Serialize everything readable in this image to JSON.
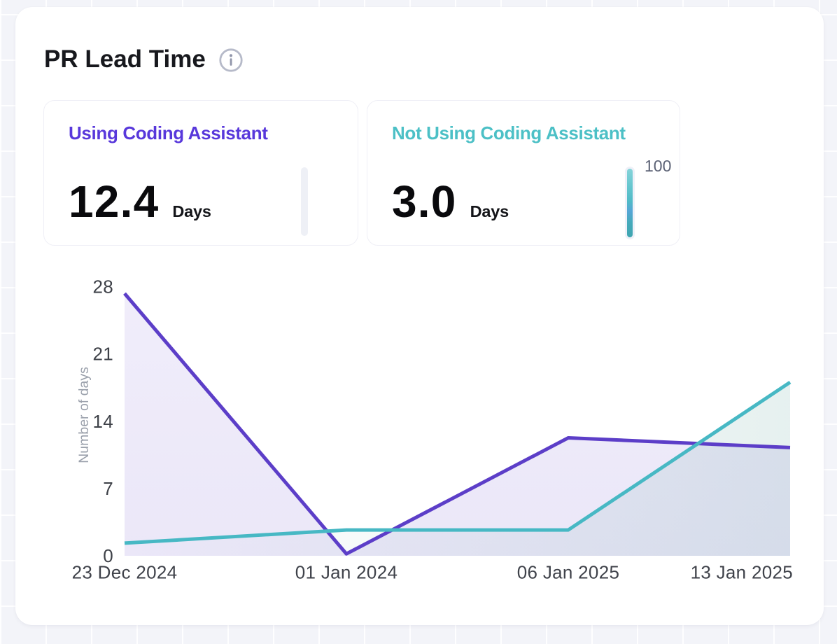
{
  "page": {
    "background": "#f3f4f9"
  },
  "panel": {
    "title": "PR Lead Time",
    "info_icon": "info-icon"
  },
  "metrics": [
    {
      "label": "Using Coding Assistant",
      "value": "12.4",
      "unit": "Days",
      "accent": "#5838db",
      "bar": {
        "percent": 0,
        "label": ""
      }
    },
    {
      "label": "Not Using Coding Assistant",
      "value": "3.0",
      "unit": "Days",
      "accent": "#4cc0c6",
      "bar": {
        "percent": 100,
        "label": "100"
      }
    }
  ],
  "chart_data": {
    "type": "area",
    "x": [
      "23 Dec 2024",
      "01 Jan 2024",
      "06 Jan 2025",
      "13 Jan 2025"
    ],
    "series": [
      {
        "name": "Using Coding Assistant",
        "color": "#5c3ec8",
        "values": [
          26.9,
          0.2,
          12.1,
          11.1
        ]
      },
      {
        "name": "Not Using Coding Assistant",
        "color": "#47b8c4",
        "values": [
          1.3,
          2.65,
          2.65,
          17.8
        ]
      }
    ],
    "title": "PR Lead Time",
    "xlabel": "",
    "ylabel": "Number of days",
    "yticks": [
      0,
      7,
      14,
      21,
      28
    ],
    "ylim": [
      0,
      28
    ],
    "grid": false,
    "legend": "none"
  }
}
